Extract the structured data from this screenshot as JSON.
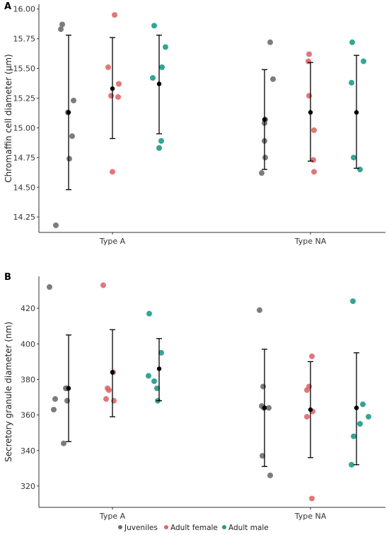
{
  "legend": [
    {
      "label": "Juveniles",
      "color": "#6e6e6e"
    },
    {
      "label": "Adult female",
      "color": "#e0676a"
    },
    {
      "label": "Adult male",
      "color": "#1e9b8a"
    }
  ],
  "chart_data": [
    {
      "type": "scatter",
      "panel": "A",
      "ylabel": "Chromaffin cell diameter (µm)",
      "xlabel": "",
      "categories": [
        "Type A",
        "Type NA"
      ],
      "ylim": [
        14.12,
        16.04
      ],
      "yticks": [
        14.25,
        14.5,
        14.75,
        15.0,
        15.25,
        15.5,
        15.75,
        16.0
      ],
      "ytick_labels": [
        "14.25",
        "14.50",
        "14.75",
        "15.00",
        "15.25",
        "15.50",
        "15.75",
        "16.00"
      ],
      "grid": false,
      "series": [
        {
          "name": "Juveniles",
          "groups": [
            {
              "category": "Type A",
              "points": [
                15.87,
                15.83,
                15.23,
                15.13,
                14.93,
                14.74,
                14.18
              ],
              "mean": 15.13,
              "sd": [
                14.48,
                15.78
              ]
            },
            {
              "category": "Type NA",
              "points": [
                15.72,
                15.41,
                15.07,
                15.04,
                14.89,
                14.75,
                14.62
              ],
              "mean": 15.07,
              "sd": [
                14.65,
                15.49
              ]
            }
          ]
        },
        {
          "name": "Adult female",
          "groups": [
            {
              "category": "Type A",
              "points": [
                15.95,
                15.51,
                15.37,
                15.27,
                15.26,
                14.63
              ],
              "mean": 15.33,
              "sd": [
                14.91,
                15.76
              ]
            },
            {
              "category": "Type NA",
              "points": [
                15.62,
                15.56,
                15.27,
                14.98,
                14.73,
                14.63
              ],
              "mean": 15.13,
              "sd": [
                14.72,
                15.55
              ]
            }
          ]
        },
        {
          "name": "Adult male",
          "groups": [
            {
              "category": "Type A",
              "points": [
                15.86,
                15.68,
                15.51,
                15.42,
                14.89,
                14.83
              ],
              "mean": 15.37,
              "sd": [
                14.95,
                15.78
              ]
            },
            {
              "category": "Type NA",
              "points": [
                15.72,
                15.56,
                15.38,
                14.75,
                14.65
              ],
              "mean": 15.13,
              "sd": [
                14.66,
                15.61
              ]
            }
          ]
        }
      ]
    },
    {
      "type": "scatter",
      "panel": "B",
      "ylabel": "Secretory granule diameter (nm)",
      "xlabel": "",
      "categories": [
        "Type A",
        "Type NA"
      ],
      "ylim": [
        308,
        438
      ],
      "yticks": [
        320,
        340,
        360,
        380,
        400,
        420
      ],
      "ytick_labels": [
        "320",
        "340",
        "360",
        "380",
        "400",
        "420"
      ],
      "grid": false,
      "series": [
        {
          "name": "Juveniles",
          "groups": [
            {
              "category": "Type A",
              "points": [
                432,
                375,
                375,
                369,
                368,
                363,
                344
              ],
              "mean": 375,
              "sd": [
                345,
                405
              ]
            },
            {
              "category": "Type NA",
              "points": [
                419,
                376,
                365,
                364,
                364,
                337,
                326
              ],
              "mean": 364,
              "sd": [
                331,
                397
              ]
            }
          ]
        },
        {
          "name": "Adult female",
          "groups": [
            {
              "category": "Type A",
              "points": [
                433,
                384,
                375,
                374,
                369,
                368
              ],
              "mean": 384,
              "sd": [
                359,
                408
              ]
            },
            {
              "category": "Type NA",
              "points": [
                393,
                376,
                374,
                362,
                359,
                313
              ],
              "mean": 363,
              "sd": [
                336,
                390
              ]
            }
          ]
        },
        {
          "name": "Adult male",
          "groups": [
            {
              "category": "Type A",
              "points": [
                417,
                395,
                382,
                379,
                375,
                368
              ],
              "mean": 386,
              "sd": [
                368,
                403
              ]
            },
            {
              "category": "Type NA",
              "points": [
                424,
                366,
                359,
                355,
                348,
                332
              ],
              "mean": 364,
              "sd": [
                332,
                395
              ]
            }
          ]
        }
      ]
    }
  ]
}
